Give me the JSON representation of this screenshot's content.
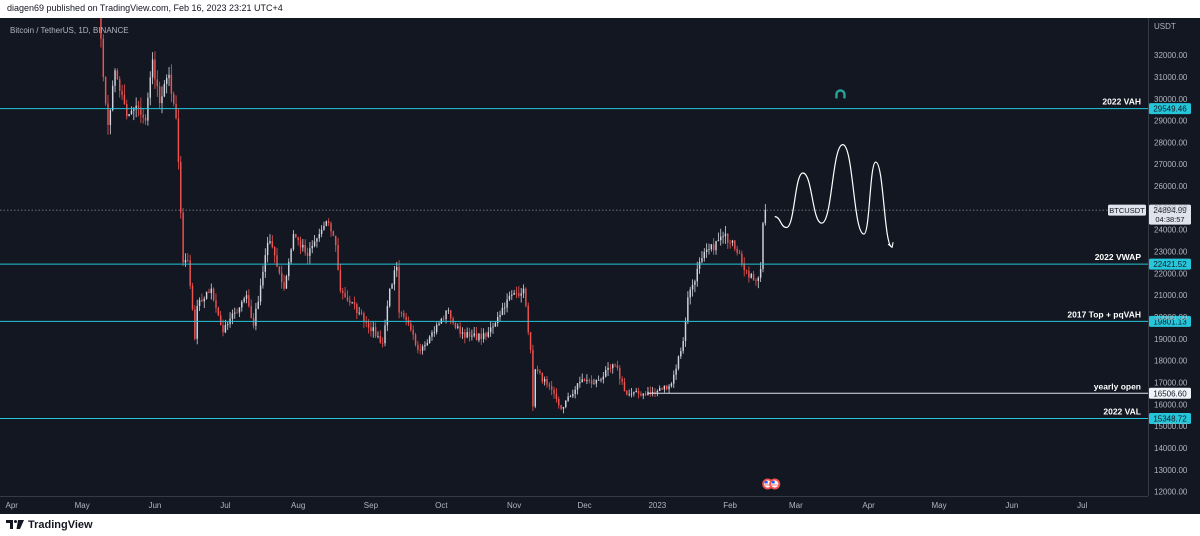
{
  "header": {
    "publish_text": "diagen69 published on TradingView.com, Feb 16, 2023 23:21 UTC+4"
  },
  "footer": {
    "brand": "TradingView"
  },
  "chart": {
    "symbol_text": "Bitcoin / TetherUS, 1D, BINANCE",
    "currency": "USDT",
    "colors": {
      "up": "#d1d4dc",
      "down": "#ef5350",
      "background": "#131722",
      "level": "#26c6da",
      "text": "#b2b5be"
    },
    "price_ticks": [
      12000,
      13000,
      14000,
      15000,
      16000,
      17000,
      18000,
      19000,
      20000,
      21000,
      22000,
      23000,
      24000,
      25000,
      26000,
      27000,
      28000,
      29000,
      30000,
      31000,
      32000
    ],
    "price_tick_labels": [
      "12000.00",
      "13000.00",
      "14000.00",
      "15000.00",
      "16000.00",
      "17000.00",
      "18000.00",
      "19000.00",
      "20000.00",
      "21000.00",
      "22000.00",
      "23000.00",
      "24000.00",
      "25000.00",
      "26000.00",
      "27000.00",
      "28000.00",
      "29000.00",
      "30000.00",
      "31000.00",
      "32000.00"
    ],
    "time_labels": [
      "Apr",
      "May",
      "Jun",
      "Jul",
      "Aug",
      "Sep",
      "Oct",
      "Nov",
      "Dec",
      "2023",
      "Feb",
      "Mar",
      "Apr",
      "May",
      "Jun",
      "Jul"
    ],
    "levels": [
      {
        "name": "2022 VAH",
        "price": 29549.46,
        "price_text": "29549.46",
        "style": "solid",
        "badge": "cyan"
      },
      {
        "name": "2022 VWAP",
        "price": 22421.52,
        "price_text": "22421.52",
        "style": "solid",
        "badge": "cyan"
      },
      {
        "name": "2017 Top + pqVAH",
        "price": 19801.13,
        "price_text": "19801.13",
        "style": "solid",
        "badge": "cyan"
      },
      {
        "name": "yearly open",
        "price": 16506.6,
        "price_text": "16506.60",
        "style": "white",
        "badge": "white"
      },
      {
        "name": "2022 VAL",
        "price": 15348.72,
        "price_text": "15348.72",
        "style": "solid",
        "badge": "cyan"
      }
    ],
    "current": {
      "symbol": "BTCUSDT",
      "price": 24894.99,
      "price_text": "24894.99",
      "countdown": "04:38:57"
    }
  },
  "chart_data": {
    "type": "candlestick",
    "title": "Bitcoin / TetherUS, 1D, BINANCE",
    "y_unit": "USDT",
    "ylim": [
      11800,
      33700
    ],
    "x_range": [
      "2022-03-27",
      "2023-07-29"
    ],
    "grid": false,
    "series": [
      {
        "name": "BTCUSDT",
        "interval": "1D",
        "anchors": [
          {
            "date": "2022-05-05",
            "close": 39600
          },
          {
            "date": "2022-05-07",
            "close": 35500
          },
          {
            "date": "2022-05-08",
            "close": 34000
          },
          {
            "date": "2022-05-10",
            "close": 31000
          },
          {
            "date": "2022-05-12",
            "close": 28800
          },
          {
            "date": "2022-05-15",
            "close": 31300
          },
          {
            "date": "2022-05-20",
            "close": 29200
          },
          {
            "date": "2022-05-25",
            "close": 29600
          },
          {
            "date": "2022-05-28",
            "close": 29000
          },
          {
            "date": "2022-05-31",
            "close": 31800
          },
          {
            "date": "2022-06-03",
            "close": 29800
          },
          {
            "date": "2022-06-07",
            "close": 31100
          },
          {
            "date": "2022-06-10",
            "close": 29100
          },
          {
            "date": "2022-06-13",
            "close": 22500
          },
          {
            "date": "2022-06-15",
            "close": 22600
          },
          {
            "date": "2022-06-18",
            "close": 19000
          },
          {
            "date": "2022-06-19",
            "close": 20500
          },
          {
            "date": "2022-06-25",
            "close": 21300
          },
          {
            "date": "2022-06-30",
            "close": 19300
          },
          {
            "date": "2022-07-05",
            "close": 20200
          },
          {
            "date": "2022-07-10",
            "close": 21000
          },
          {
            "date": "2022-07-13",
            "close": 19600
          },
          {
            "date": "2022-07-19",
            "close": 23400
          },
          {
            "date": "2022-07-21",
            "close": 23200
          },
          {
            "date": "2022-07-26",
            "close": 21300
          },
          {
            "date": "2022-07-30",
            "close": 23800
          },
          {
            "date": "2022-08-05",
            "close": 22800
          },
          {
            "date": "2022-08-11",
            "close": 24000
          },
          {
            "date": "2022-08-14",
            "close": 24300
          },
          {
            "date": "2022-08-17",
            "close": 23300
          },
          {
            "date": "2022-08-19",
            "close": 21200
          },
          {
            "date": "2022-08-27",
            "close": 20200
          },
          {
            "date": "2022-09-06",
            "close": 18800
          },
          {
            "date": "2022-09-09",
            "close": 21300
          },
          {
            "date": "2022-09-12",
            "close": 22300
          },
          {
            "date": "2022-09-13",
            "close": 20200
          },
          {
            "date": "2022-09-18",
            "close": 19400
          },
          {
            "date": "2022-09-21",
            "close": 18500
          },
          {
            "date": "2022-09-26",
            "close": 19100
          },
          {
            "date": "2022-10-04",
            "close": 20300
          },
          {
            "date": "2022-10-07",
            "close": 19500
          },
          {
            "date": "2022-10-13",
            "close": 19100
          },
          {
            "date": "2022-10-20",
            "close": 19100
          },
          {
            "date": "2022-10-25",
            "close": 20000
          },
          {
            "date": "2022-10-29",
            "close": 20800
          },
          {
            "date": "2022-11-05",
            "close": 21300
          },
          {
            "date": "2022-11-08",
            "close": 18500
          },
          {
            "date": "2022-11-09",
            "close": 15900
          },
          {
            "date": "2022-11-10",
            "close": 17600
          },
          {
            "date": "2022-11-15",
            "close": 16900
          },
          {
            "date": "2022-11-21",
            "close": 15800
          },
          {
            "date": "2022-11-30",
            "close": 17150
          },
          {
            "date": "2022-12-05",
            "close": 16950
          },
          {
            "date": "2022-12-14",
            "close": 17800
          },
          {
            "date": "2022-12-19",
            "close": 16450
          },
          {
            "date": "2022-12-31",
            "close": 16550
          },
          {
            "date": "2023-01-07",
            "close": 16950
          },
          {
            "date": "2023-01-12",
            "close": 18900
          },
          {
            "date": "2023-01-14",
            "close": 20900
          },
          {
            "date": "2023-01-20",
            "close": 22700
          },
          {
            "date": "2023-01-29",
            "close": 23700
          },
          {
            "date": "2023-02-02",
            "close": 23500
          },
          {
            "date": "2023-02-05",
            "close": 22900
          },
          {
            "date": "2023-02-09",
            "close": 21800
          },
          {
            "date": "2023-02-13",
            "close": 21800
          },
          {
            "date": "2023-02-14",
            "close": 22200
          },
          {
            "date": "2023-02-15",
            "close": 24300
          },
          {
            "date": "2023-02-16",
            "close": 24894.99
          }
        ]
      }
    ],
    "projection": {
      "name": "drawn path",
      "points": [
        {
          "date": "2023-02-20",
          "price": 24600
        },
        {
          "date": "2023-02-25",
          "price": 24100
        },
        {
          "date": "2023-03-04",
          "price": 26600
        },
        {
          "date": "2023-03-12",
          "price": 24300
        },
        {
          "date": "2023-03-21",
          "price": 27900
        },
        {
          "date": "2023-03-30",
          "price": 23800
        },
        {
          "date": "2023-04-04",
          "price": 27100
        },
        {
          "date": "2023-04-11",
          "price": 23200
        }
      ]
    },
    "annotations": [
      {
        "text": "2022 VAH",
        "price": 29549.46
      },
      {
        "text": "2022 VWAP",
        "price": 22421.52
      },
      {
        "text": "2017 Top + pqVAH",
        "price": 19801.13
      },
      {
        "text": "yearly open",
        "price": 16506.6
      },
      {
        "text": "2022 VAL",
        "price": 15348.72
      }
    ],
    "markers": [
      {
        "name": "signal-marker",
        "date": "2023-03-20",
        "price": 30200
      }
    ],
    "events": [
      {
        "name": "us-event-1",
        "date": "2023-02-17"
      },
      {
        "name": "us-event-2",
        "date": "2023-02-20"
      }
    ]
  }
}
